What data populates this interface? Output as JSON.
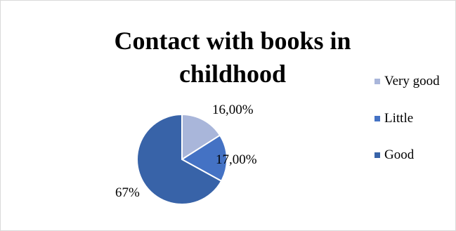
{
  "chart_data": {
    "type": "pie",
    "title": "Contact with books in childhood",
    "categories": [
      "Very good",
      "Little",
      "Good"
    ],
    "values": [
      16,
      17,
      67
    ],
    "data_labels": [
      "16,00%",
      "17,00%",
      "67%"
    ],
    "colors": [
      "#a9b6da",
      "#4472c4",
      "#3863a8"
    ],
    "legend_position": "right"
  }
}
